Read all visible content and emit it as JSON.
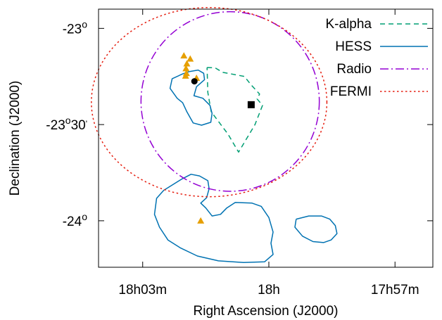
{
  "chart_data": {
    "type": "scatter",
    "title": "",
    "xlabel": "Right Ascension (J2000)",
    "ylabel": "Declination (J2000)",
    "x_ticks": [
      {
        "value": -3,
        "label": "18h03m"
      },
      {
        "value": 0,
        "label": "18h"
      },
      {
        "value": 3,
        "label": "17h57m"
      }
    ],
    "y_ticks": [
      {
        "value": 0,
        "label": "-23",
        "sup": "o",
        "suffix": ""
      },
      {
        "value": -30,
        "label": "-23",
        "sup": "o",
        "suffix": "30'"
      },
      {
        "value": -60,
        "label": "-24",
        "sup": "o",
        "suffix": ""
      }
    ],
    "xlim": [
      -4.05,
      3.9
    ],
    "ylim": [
      -74.5,
      6
    ],
    "grid": false,
    "legend_position": "top-right",
    "colors": {
      "kalpha": "#009e73",
      "hess": "#0072b2",
      "radio": "#9400d3",
      "fermi": "#e51e10",
      "triangles": "#e69f00",
      "points": "#000000"
    },
    "series": [
      {
        "name": "K-alpha",
        "style": "dashed",
        "color": "#009e73",
        "points": [
          [
            -1.47,
            -12.2
          ],
          [
            -1.28,
            -12.3
          ],
          [
            -1.1,
            -13.7
          ],
          [
            -0.58,
            -15.0
          ],
          [
            -0.43,
            -17.5
          ],
          [
            -0.22,
            -20.5
          ],
          [
            -0.28,
            -22.0
          ],
          [
            -0.15,
            -24.0
          ],
          [
            -0.33,
            -30.0
          ],
          [
            -0.72,
            -38.6
          ],
          [
            -0.97,
            -33.0
          ],
          [
            -1.37,
            -26.0
          ],
          [
            -1.45,
            -20.0
          ],
          [
            -1.47,
            -12.2
          ]
        ]
      },
      {
        "name": "HESS",
        "style": "solid",
        "color": "#0072b2",
        "contours": [
          [
            [
              -1.9,
              -13.5
            ],
            [
              -2.05,
              -14.2
            ],
            [
              -2.3,
              -15.7
            ],
            [
              -2.35,
              -18.7
            ],
            [
              -2.18,
              -21.8
            ],
            [
              -2.05,
              -23.2
            ],
            [
              -1.95,
              -26.0
            ],
            [
              -1.8,
              -29.5
            ],
            [
              -1.6,
              -30.2
            ],
            [
              -1.38,
              -29.3
            ],
            [
              -1.35,
              -26.5
            ],
            [
              -1.4,
              -24.0
            ],
            [
              -1.57,
              -21.8
            ],
            [
              -1.78,
              -21.0
            ],
            [
              -1.72,
              -18.2
            ],
            [
              -1.53,
              -16.0
            ],
            [
              -1.55,
              -14.0
            ],
            [
              -1.68,
              -13.0
            ],
            [
              -1.9,
              -13.5
            ]
          ],
          [
            [
              -2.07,
              -47.0
            ],
            [
              -2.5,
              -50.5
            ],
            [
              -2.67,
              -53.0
            ],
            [
              -2.72,
              -58.0
            ],
            [
              -2.6,
              -62.0
            ],
            [
              -2.4,
              -66.0
            ],
            [
              -2.1,
              -68.5
            ],
            [
              -1.7,
              -71.0
            ],
            [
              -1.2,
              -72.5
            ],
            [
              -0.6,
              -73.0
            ],
            [
              -0.1,
              -72.8
            ],
            [
              0.1,
              -70.5
            ],
            [
              0.05,
              -67.0
            ],
            [
              0.1,
              -63.5
            ],
            [
              0.0,
              -59.0
            ],
            [
              -0.18,
              -55.5
            ],
            [
              -0.4,
              -54.5
            ],
            [
              -0.8,
              -54.3
            ],
            [
              -1.0,
              -56.0
            ],
            [
              -1.15,
              -58.0
            ],
            [
              -1.35,
              -58.5
            ],
            [
              -1.5,
              -56.0
            ],
            [
              -1.62,
              -54.5
            ],
            [
              -1.48,
              -52.8
            ],
            [
              -1.42,
              -50.0
            ],
            [
              -1.45,
              -47.5
            ],
            [
              -1.65,
              -46.0
            ],
            [
              -1.85,
              -45.5
            ],
            [
              -2.07,
              -47.0
            ]
          ],
          [
            [
              0.65,
              -59.5
            ],
            [
              0.95,
              -58.5
            ],
            [
              1.25,
              -58.5
            ],
            [
              1.45,
              -59.5
            ],
            [
              1.58,
              -61.5
            ],
            [
              1.62,
              -64.0
            ],
            [
              1.48,
              -66.0
            ],
            [
              1.3,
              -66.8
            ],
            [
              1.05,
              -66.5
            ],
            [
              0.8,
              -64.8
            ],
            [
              0.62,
              -62.0
            ],
            [
              0.65,
              -59.5
            ]
          ]
        ]
      },
      {
        "name": "Radio",
        "style": "dashdot",
        "color": "#9400d3",
        "circle": {
          "cx": -0.92,
          "cy": -22.8,
          "rx": 2.12,
          "ry": 28.0
        }
      },
      {
        "name": "FERMI",
        "style": "dotted",
        "color": "#e51e10",
        "circle": {
          "cx": -1.42,
          "cy": -23.0,
          "rx": 2.8,
          "ry": 29.5
        }
      }
    ],
    "markers": {
      "triangles": [
        [
          -2.02,
          -8.5
        ],
        [
          -1.87,
          -9.5
        ],
        [
          -1.95,
          -11.0
        ],
        [
          -1.97,
          -12.5
        ],
        [
          -1.96,
          -14.0
        ],
        [
          -1.98,
          -14.8
        ],
        [
          -1.72,
          -15.5
        ],
        [
          -1.62,
          -60.0
        ]
      ],
      "circle": {
        "x": -1.77,
        "y": -16.5
      },
      "square": {
        "x": -0.42,
        "y": -23.8
      }
    }
  }
}
